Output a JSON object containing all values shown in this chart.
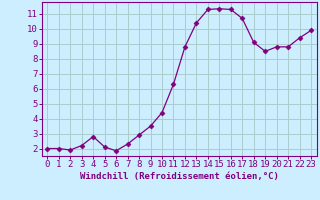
{
  "x": [
    0,
    1,
    2,
    3,
    4,
    5,
    6,
    7,
    8,
    9,
    10,
    11,
    12,
    13,
    14,
    15,
    16,
    17,
    18,
    19,
    20,
    21,
    22,
    23
  ],
  "y": [
    2.0,
    2.0,
    1.9,
    2.2,
    2.8,
    2.1,
    1.85,
    2.3,
    2.9,
    3.5,
    4.4,
    6.3,
    8.8,
    10.4,
    11.3,
    11.35,
    11.3,
    10.7,
    9.1,
    8.5,
    8.8,
    8.8,
    9.4,
    9.9
  ],
  "line_color": "#800080",
  "marker": "D",
  "marker_size": 2.5,
  "background_color": "#cceeff",
  "grid_color": "#aacccc",
  "xlabel": "Windchill (Refroidissement éolien,°C)",
  "ylabel": "",
  "title": "",
  "xlim": [
    -0.5,
    23.5
  ],
  "ylim": [
    1.5,
    11.8
  ],
  "yticks": [
    2,
    3,
    4,
    5,
    6,
    7,
    8,
    9,
    10,
    11
  ],
  "xticks": [
    0,
    1,
    2,
    3,
    4,
    5,
    6,
    7,
    8,
    9,
    10,
    11,
    12,
    13,
    14,
    15,
    16,
    17,
    18,
    19,
    20,
    21,
    22,
    23
  ],
  "tick_color": "#800080",
  "spine_color": "#800080",
  "label_fontsize": 6.5,
  "tick_fontsize": 6.5
}
